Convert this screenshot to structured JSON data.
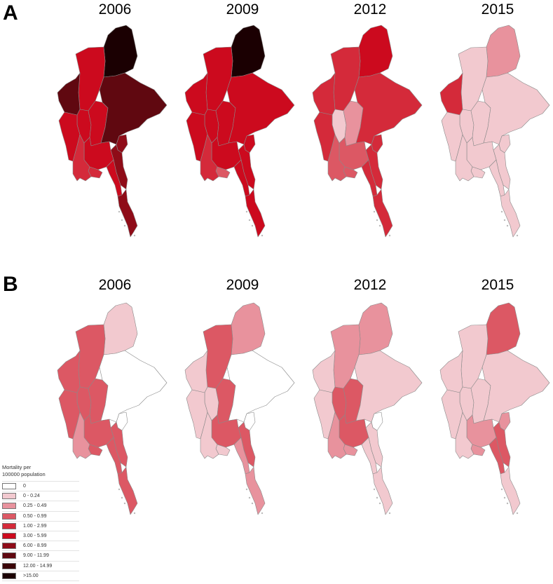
{
  "panels": [
    {
      "label": "A",
      "maps": [
        {
          "year": "2006",
          "classes": {
            "kachin": 9,
            "sagaing": 5,
            "chin": 7,
            "magway": 5,
            "mandalay": 5,
            "shan": 7,
            "kayah": 6,
            "kayin": 6,
            "rakhine": 5,
            "bago": 5,
            "yangon": 4,
            "ayeyarwady": 4,
            "mon": 5,
            "tanintharyi": 6
          }
        },
        {
          "year": "2009",
          "classes": {
            "kachin": 9,
            "sagaing": 5,
            "chin": 5,
            "magway": 5,
            "mandalay": 5,
            "shan": 5,
            "kayah": 5,
            "kayin": 5,
            "rakhine": 5,
            "bago": 5,
            "yangon": 3,
            "ayeyarwady": 4,
            "mon": 5,
            "tanintharyi": 5
          }
        },
        {
          "year": "2012",
          "classes": {
            "kachin": 5,
            "sagaing": 4,
            "chin": 4,
            "magway": 1,
            "mandalay": 2,
            "shan": 4,
            "kayah": 4,
            "kayin": 4,
            "rakhine": 4,
            "bago": 3,
            "yangon": 3,
            "ayeyarwady": 3,
            "mon": 4,
            "tanintharyi": 4
          }
        },
        {
          "year": "2015",
          "classes": {
            "kachin": 2,
            "sagaing": 1,
            "chin": 4,
            "magway": 1,
            "mandalay": 1,
            "shan": 1,
            "kayah": 1,
            "kayin": 1,
            "rakhine": 1,
            "bago": 1,
            "yangon": 1,
            "ayeyarwady": 1,
            "mon": 1,
            "tanintharyi": 1
          }
        }
      ]
    },
    {
      "label": "B",
      "maps": [
        {
          "year": "2006",
          "classes": {
            "kachin": 1,
            "sagaing": 3,
            "chin": 3,
            "magway": 3,
            "mandalay": 3,
            "shan": 0,
            "kayah": 0,
            "kayin": 3,
            "rakhine": 3,
            "bago": 3,
            "yangon": 3,
            "ayeyarwady": 2,
            "mon": 3,
            "tanintharyi": 3
          }
        },
        {
          "year": "2009",
          "classes": {
            "kachin": 2,
            "sagaing": 3,
            "chin": 1,
            "magway": 1,
            "mandalay": 3,
            "shan": 0,
            "kayah": 0,
            "kayin": 3,
            "rakhine": 1,
            "bago": 3,
            "yangon": 1,
            "ayeyarwady": 1,
            "mon": 2,
            "tanintharyi": 2
          }
        },
        {
          "year": "2012",
          "classes": {
            "kachin": 2,
            "sagaing": 2,
            "chin": 1,
            "magway": 3,
            "mandalay": 3,
            "shan": 1,
            "kayah": 0,
            "kayin": 1,
            "rakhine": 1,
            "bago": 3,
            "yangon": 2,
            "ayeyarwady": 2,
            "mon": 1,
            "tanintharyi": 1
          }
        },
        {
          "year": "2015",
          "classes": {
            "kachin": 3,
            "sagaing": 1,
            "chin": 1,
            "magway": 1,
            "mandalay": 1,
            "shan": 1,
            "kayah": 2,
            "kayin": 3,
            "rakhine": 1,
            "bago": 2,
            "yangon": 2,
            "ayeyarwady": 1,
            "mon": 3,
            "tanintharyi": 1
          }
        }
      ]
    }
  ],
  "legend": {
    "title_line1": "Mortality per",
    "title_line2": "100000 population",
    "items": [
      {
        "label": "0",
        "color": "#ffffff"
      },
      {
        "label": "0 - 0.24",
        "color": "#f2c9cf"
      },
      {
        "label": "0.25 - 0.49",
        "color": "#e8929d"
      },
      {
        "label": "0.50 - 0.99",
        "color": "#dc5864"
      },
      {
        "label": "1.00 - 2.99",
        "color": "#d42a3a"
      },
      {
        "label": "3.00 - 5.99",
        "color": "#cc0a1e"
      },
      {
        "label": "6.00 - 8.99",
        "color": "#8f0c18"
      },
      {
        "label": "9.00 - 11.99",
        "color": "#600810"
      },
      {
        "label": "12.00 - 14.99",
        "color": "#3a0307"
      },
      {
        "label": ">15.00",
        "color": "#1b0002"
      }
    ]
  }
}
